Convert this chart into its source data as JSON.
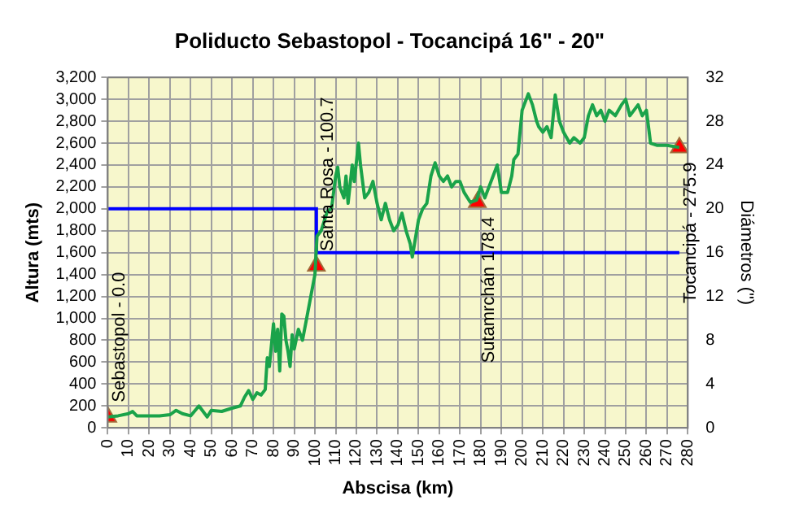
{
  "chart_data": {
    "type": "line",
    "title": "Poliducto Sebastopol - Tocancipá 16\" - 20\"",
    "xlabel": "Abscisa (km)",
    "ylabel": "Altura (mts)",
    "y2label": "Diámetros (\")",
    "series": [
      {
        "type": "line",
        "color": "#1aa34a",
        "marker": "none",
        "x": [
          0,
          5,
          10,
          12,
          14,
          20,
          25,
          30,
          33,
          36,
          40,
          44,
          46,
          48,
          50,
          55,
          60,
          64,
          66,
          68,
          70,
          72,
          74,
          76,
          77,
          78,
          80,
          81,
          82,
          83,
          84,
          85,
          86,
          87,
          88,
          89,
          90,
          92,
          94,
          96,
          98,
          100,
          101,
          103,
          106,
          108,
          110,
          111,
          112,
          114,
          115,
          116,
          118,
          119,
          121,
          122,
          124,
          126,
          128,
          130,
          132,
          134,
          136,
          138,
          140,
          142,
          144,
          146,
          147,
          150,
          152,
          154,
          156,
          158,
          160,
          162,
          164,
          166,
          168,
          170,
          172,
          175,
          178,
          180,
          182,
          186,
          188,
          190,
          193,
          195,
          196,
          198,
          200,
          203,
          205,
          207,
          208,
          210,
          212,
          214,
          216,
          218,
          220,
          223,
          225,
          228,
          230,
          232,
          234,
          236,
          238,
          240,
          242,
          245,
          248,
          250,
          252,
          254,
          256,
          258,
          260,
          262,
          265,
          270,
          275.9
        ],
        "values": [
          100,
          110,
          130,
          150,
          110,
          110,
          110,
          120,
          160,
          130,
          110,
          200,
          150,
          100,
          160,
          150,
          180,
          200,
          280,
          340,
          260,
          320,
          300,
          350,
          640,
          560,
          950,
          700,
          900,
          520,
          1040,
          1020,
          800,
          700,
          560,
          850,
          720,
          900,
          800,
          1000,
          1200,
          1400,
          1750,
          1800,
          1980,
          2000,
          2300,
          2380,
          2200,
          2100,
          2300,
          2050,
          2400,
          2250,
          2600,
          2400,
          2100,
          2150,
          2250,
          2050,
          1900,
          2050,
          1900,
          1800,
          1850,
          1960,
          1800,
          1680,
          1560,
          1900,
          2000,
          2050,
          2300,
          2420,
          2300,
          2250,
          2300,
          2200,
          2250,
          2250,
          2150,
          2060,
          2080,
          2200,
          2100,
          2300,
          2400,
          2150,
          2150,
          2300,
          2450,
          2500,
          2900,
          3050,
          2950,
          2800,
          2750,
          2700,
          2750,
          2650,
          3040,
          2800,
          2700,
          2600,
          2650,
          2600,
          2650,
          2850,
          2950,
          2850,
          2900,
          2800,
          2900,
          2850,
          2950,
          3000,
          2850,
          2900,
          2950,
          2850,
          2900,
          2600,
          2580,
          2580,
          2560
        ]
      },
      {
        "type": "step",
        "color": "#0000ff",
        "marker": "none",
        "axis": "y2",
        "x": [
          0,
          100.7,
          275.9
        ],
        "values": [
          20,
          16,
          16
        ]
      },
      {
        "type": "scatter",
        "color": "#ff0000",
        "marker": "triangle",
        "x": [
          0,
          100.7,
          178.4,
          275.9
        ],
        "values": [
          100,
          1480,
          2060,
          2560
        ]
      }
    ],
    "xlim": [
      0,
      280
    ],
    "xticks": [
      0,
      10,
      20,
      30,
      40,
      50,
      60,
      70,
      80,
      90,
      100,
      110,
      120,
      130,
      140,
      150,
      160,
      170,
      180,
      190,
      200,
      210,
      220,
      230,
      240,
      250,
      260,
      270,
      280
    ],
    "ylim": [
      0,
      3200
    ],
    "yticks": [
      {
        "value": 0,
        "label": "0"
      },
      {
        "value": 200,
        "label": "200"
      },
      {
        "value": 400,
        "label": "400"
      },
      {
        "value": 600,
        "label": "600"
      },
      {
        "value": 800,
        "label": "800"
      },
      {
        "value": 1000,
        "label": "1,000"
      },
      {
        "value": 1200,
        "label": "1,200"
      },
      {
        "value": 1400,
        "label": "1,400"
      },
      {
        "value": 1600,
        "label": "1,600"
      },
      {
        "value": 1800,
        "label": "1,800"
      },
      {
        "value": 2000,
        "label": "2,000"
      },
      {
        "value": 2200,
        "label": "2,200"
      },
      {
        "value": 2400,
        "label": "2,400"
      },
      {
        "value": 2600,
        "label": "2,600"
      },
      {
        "value": 2800,
        "label": "2,800"
      },
      {
        "value": 3000,
        "label": "3,000"
      },
      {
        "value": 3200,
        "label": "3,200"
      }
    ],
    "y2lim": [
      0,
      32
    ],
    "y2ticks": [
      0,
      4,
      8,
      12,
      16,
      20,
      24,
      28,
      32
    ],
    "grid": true,
    "legend": false,
    "annotations": [
      {
        "text": "Sebastopol - 0.0",
        "x": 0,
        "y": 100
      },
      {
        "text": "Santa Rosa - 100.7",
        "x": 100.7,
        "y": 1480
      },
      {
        "text": "Sutamrchán 178.4",
        "x": 178.4,
        "y": 2060
      },
      {
        "text": "Tocancipá - 275.9",
        "x": 275.9,
        "y": 2560
      }
    ]
  }
}
